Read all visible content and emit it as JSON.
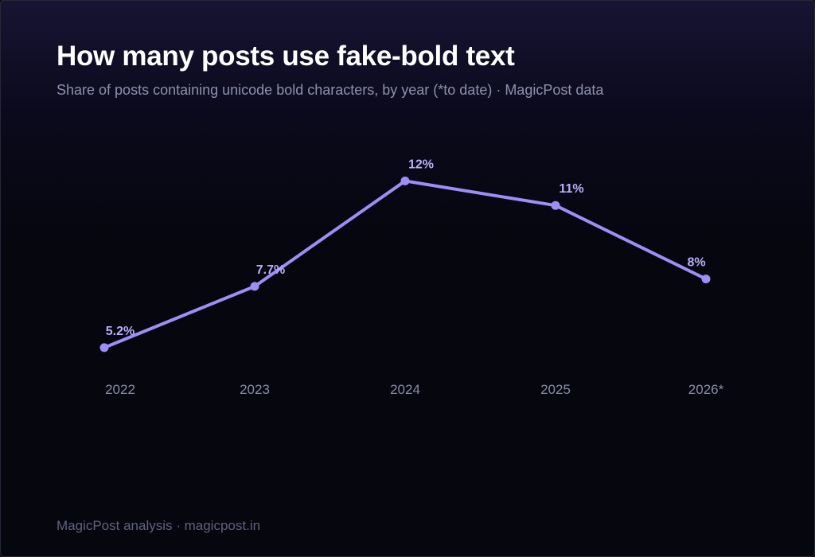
{
  "header": {
    "title": "How many posts use fake-bold text",
    "subtitle": "Share of posts containing unicode bold characters, by year (*to date) · MagicPost data"
  },
  "footer": {
    "credit": "MagicPost analysis · magicpost.in"
  },
  "colors": {
    "line": "#9d8df7",
    "label": "#b9aefc"
  },
  "chart_data": {
    "type": "line",
    "categories": [
      "2022",
      "2023",
      "2024",
      "2025",
      "2026*"
    ],
    "series": [
      {
        "values": [
          5.2,
          7.7,
          12,
          11,
          8
        ],
        "labels": [
          "5.2%",
          "7.7%",
          "12%",
          "11%",
          "8%"
        ]
      }
    ],
    "title": "How many posts use fake-bold text",
    "xlabel": "",
    "ylabel": "",
    "ylim": [
      0,
      12
    ],
    "grid": false,
    "legend": "none"
  }
}
